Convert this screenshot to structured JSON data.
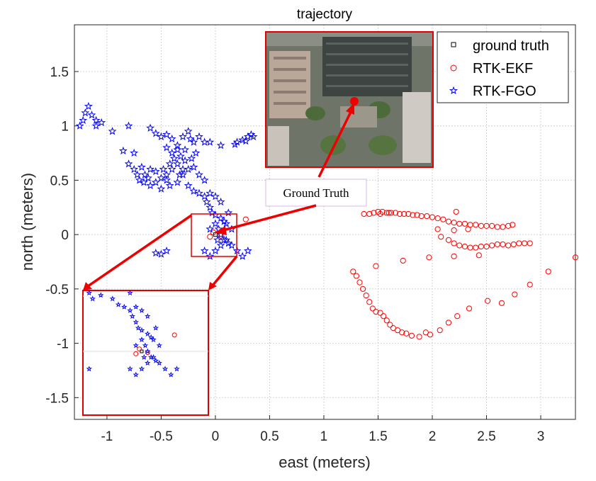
{
  "chart_data": {
    "type": "scatter",
    "title": "trajectory",
    "xlabel": "east (meters)",
    "ylabel": "north (meters)",
    "xlim": [
      -1.3,
      3.32
    ],
    "ylim": [
      -1.7,
      1.93
    ],
    "xticks": [
      "-1",
      "-0.5",
      "0",
      "0.5",
      "1",
      "1.5",
      "2",
      "2.5",
      "3"
    ],
    "xtick_values": [
      -1,
      -0.5,
      0,
      0.5,
      1,
      1.5,
      2,
      2.5,
      3
    ],
    "yticks": [
      "1.5",
      "1",
      "0.5",
      "0",
      "-0.5",
      "-1",
      "-1.5"
    ],
    "ytick_values": [
      1.5,
      1,
      0.5,
      0,
      -0.5,
      -1,
      -1.5
    ],
    "grid": true,
    "legend": "top-right",
    "series": [
      {
        "name": "ground truth",
        "marker": "square",
        "color": "#000000",
        "points": [
          [
            0.0,
            0.0
          ]
        ]
      },
      {
        "name": "RTK-EKF",
        "marker": "circle",
        "color": "#ff0000",
        "points": [
          [
            0.28,
            0.14
          ],
          [
            1.27,
            -0.34
          ],
          [
            1.3,
            -0.38
          ],
          [
            1.33,
            -0.44
          ],
          [
            1.36,
            -0.5
          ],
          [
            1.39,
            -0.56
          ],
          [
            1.42,
            -0.62
          ],
          [
            1.45,
            -0.68
          ],
          [
            1.48,
            -0.71
          ],
          [
            1.52,
            -0.72
          ],
          [
            1.55,
            -0.75
          ],
          [
            1.58,
            -0.79
          ],
          [
            1.61,
            -0.83
          ],
          [
            1.64,
            -0.86
          ],
          [
            1.68,
            -0.88
          ],
          [
            1.72,
            -0.9
          ],
          [
            1.76,
            -0.91
          ],
          [
            1.81,
            -0.93
          ],
          [
            1.88,
            -0.94
          ],
          [
            1.94,
            -0.9
          ],
          [
            1.98,
            -0.92
          ],
          [
            2.07,
            -0.88
          ],
          [
            2.15,
            -0.81
          ],
          [
            2.23,
            -0.75
          ],
          [
            2.34,
            -0.68
          ],
          [
            2.51,
            -0.61
          ],
          [
            2.64,
            -0.63
          ],
          [
            2.76,
            -0.55
          ],
          [
            2.9,
            -0.46
          ],
          [
            3.07,
            -0.34
          ],
          [
            3.32,
            -0.21
          ],
          [
            1.48,
            -0.29
          ],
          [
            1.73,
            -0.24
          ],
          [
            1.97,
            -0.21
          ],
          [
            2.2,
            -0.2
          ],
          [
            2.43,
            -0.19
          ],
          [
            1.37,
            0.19
          ],
          [
            1.42,
            0.19
          ],
          [
            1.46,
            0.2
          ],
          [
            1.5,
            0.21
          ],
          [
            1.54,
            0.21
          ],
          [
            1.58,
            0.2
          ],
          [
            1.62,
            0.2
          ],
          [
            1.66,
            0.2
          ],
          [
            1.7,
            0.19
          ],
          [
            1.74,
            0.19
          ],
          [
            1.78,
            0.19
          ],
          [
            1.82,
            0.18
          ],
          [
            1.86,
            0.18
          ],
          [
            1.9,
            0.17
          ],
          [
            1.95,
            0.17
          ],
          [
            2.0,
            0.16
          ],
          [
            2.05,
            0.15
          ],
          [
            2.1,
            0.14
          ],
          [
            2.15,
            0.12
          ],
          [
            2.2,
            0.11
          ],
          [
            2.25,
            0.1
          ],
          [
            2.3,
            0.1
          ],
          [
            2.35,
            0.09
          ],
          [
            2.4,
            0.09
          ],
          [
            2.45,
            0.08
          ],
          [
            2.5,
            0.08
          ],
          [
            2.55,
            0.08
          ],
          [
            2.6,
            0.07
          ],
          [
            2.65,
            0.07
          ],
          [
            2.7,
            0.08
          ],
          [
            2.74,
            0.09
          ],
          [
            2.22,
            0.21
          ],
          [
            2.05,
            0.05
          ],
          [
            2.2,
            0.04
          ],
          [
            2.33,
            0.05
          ],
          [
            2.08,
            -0.02
          ],
          [
            2.15,
            -0.05
          ],
          [
            2.2,
            -0.08
          ],
          [
            2.25,
            -0.1
          ],
          [
            2.3,
            -0.11
          ],
          [
            2.35,
            -0.12
          ],
          [
            2.4,
            -0.12
          ],
          [
            2.45,
            -0.11
          ],
          [
            2.5,
            -0.11
          ],
          [
            2.55,
            -0.1
          ],
          [
            2.6,
            -0.09
          ],
          [
            2.65,
            -0.09
          ],
          [
            2.7,
            -0.1
          ],
          [
            2.75,
            -0.09
          ],
          [
            2.8,
            -0.08
          ],
          [
            2.85,
            -0.08
          ],
          [
            2.9,
            -0.08
          ],
          [
            1.52,
            0.19
          ],
          [
            1.6,
            0.2
          ],
          [
            -0.05,
            -0.02
          ],
          [
            0.05,
            -0.01
          ],
          [
            -0.02,
            0.02
          ]
        ]
      },
      {
        "name": "RTK-FGO",
        "marker": "star",
        "color": "#0000ff",
        "points": [
          [
            -1.25,
            1.0
          ],
          [
            -1.22,
            1.05
          ],
          [
            -1.2,
            1.12
          ],
          [
            -1.17,
            1.18
          ],
          [
            -1.14,
            1.1
          ],
          [
            -1.1,
            1.0
          ],
          [
            -1.1,
            1.05
          ],
          [
            -1.05,
            1.03
          ],
          [
            -0.95,
            0.95
          ],
          [
            -0.8,
            1.0
          ],
          [
            -0.85,
            0.77
          ],
          [
            -0.75,
            0.75
          ],
          [
            -0.6,
            0.98
          ],
          [
            -0.55,
            0.93
          ],
          [
            -0.5,
            0.9
          ],
          [
            -0.45,
            0.92
          ],
          [
            -0.4,
            0.88
          ],
          [
            -0.45,
            0.8
          ],
          [
            -0.4,
            0.75
          ],
          [
            -0.35,
            0.82
          ],
          [
            -0.3,
            0.9
          ],
          [
            -0.25,
            0.95
          ],
          [
            -0.23,
            0.88
          ],
          [
            -0.28,
            0.78
          ],
          [
            -0.32,
            0.72
          ],
          [
            -0.28,
            0.68
          ],
          [
            -0.35,
            0.65
          ],
          [
            -0.4,
            0.6
          ],
          [
            -0.45,
            0.55
          ],
          [
            -0.5,
            0.52
          ],
          [
            -0.55,
            0.58
          ],
          [
            -0.6,
            0.6
          ],
          [
            -0.65,
            0.55
          ],
          [
            -0.68,
            0.62
          ],
          [
            -0.72,
            0.55
          ],
          [
            -0.75,
            0.6
          ],
          [
            -0.8,
            0.65
          ],
          [
            -0.7,
            0.5
          ],
          [
            -0.6,
            0.45
          ],
          [
            -0.55,
            0.48
          ],
          [
            -0.5,
            0.42
          ],
          [
            -0.45,
            0.5
          ],
          [
            -0.42,
            0.45
          ],
          [
            -0.35,
            0.48
          ],
          [
            -0.3,
            0.55
          ],
          [
            -0.25,
            0.6
          ],
          [
            -0.2,
            0.62
          ],
          [
            -0.22,
            0.7
          ],
          [
            -0.18,
            0.75
          ],
          [
            -0.2,
            0.85
          ],
          [
            -0.15,
            0.9
          ],
          [
            -0.1,
            0.85
          ],
          [
            -0.05,
            0.85
          ],
          [
            0.05,
            0.82
          ],
          [
            -0.3,
            0.6
          ],
          [
            -0.33,
            0.55
          ],
          [
            -0.25,
            0.45
          ],
          [
            -0.2,
            0.4
          ],
          [
            -0.15,
            0.38
          ],
          [
            -0.1,
            0.35
          ],
          [
            -0.05,
            0.38
          ],
          [
            0.0,
            0.35
          ],
          [
            -0.08,
            0.3
          ],
          [
            -0.05,
            0.25
          ],
          [
            -0.03,
            0.2
          ],
          [
            0.0,
            0.18
          ],
          [
            0.05,
            0.15
          ],
          [
            0.08,
            0.12
          ],
          [
            0.1,
            0.1
          ],
          [
            0.03,
            0.05
          ],
          [
            0.05,
            0.0
          ],
          [
            0.08,
            -0.05
          ],
          [
            0.12,
            -0.08
          ],
          [
            0.15,
            -0.1
          ],
          [
            0.2,
            -0.15
          ],
          [
            0.25,
            -0.2
          ],
          [
            0.3,
            -0.15
          ],
          [
            0.05,
            -0.1
          ],
          [
            0.0,
            -0.15
          ],
          [
            -0.05,
            -0.2
          ],
          [
            -0.1,
            -0.15
          ],
          [
            -0.45,
            -0.15
          ],
          [
            -0.5,
            -0.18
          ],
          [
            -0.55,
            -0.17
          ],
          [
            0.2,
            0.85
          ],
          [
            0.25,
            0.87
          ],
          [
            0.3,
            0.9
          ],
          [
            0.33,
            0.92
          ],
          [
            0.18,
            0.83
          ],
          [
            0.28,
            0.86
          ],
          [
            0.35,
            0.9
          ],
          [
            0.0,
            0.1
          ],
          [
            -0.05,
            0.05
          ],
          [
            0.02,
            -0.05
          ],
          [
            0.1,
            -0.05
          ],
          [
            0.15,
            0.05
          ],
          [
            0.12,
            0.2
          ],
          [
            0.05,
            0.3
          ],
          [
            -0.1,
            0.5
          ],
          [
            -0.15,
            0.55
          ],
          [
            -0.35,
            0.78
          ],
          [
            -0.38,
            0.7
          ],
          [
            -0.42,
            0.65
          ],
          [
            -0.48,
            0.6
          ],
          [
            -0.62,
            0.52
          ],
          [
            -0.66,
            0.48
          ]
        ]
      }
    ]
  },
  "annotations": {
    "ground_truth_label": "Ground Truth"
  }
}
